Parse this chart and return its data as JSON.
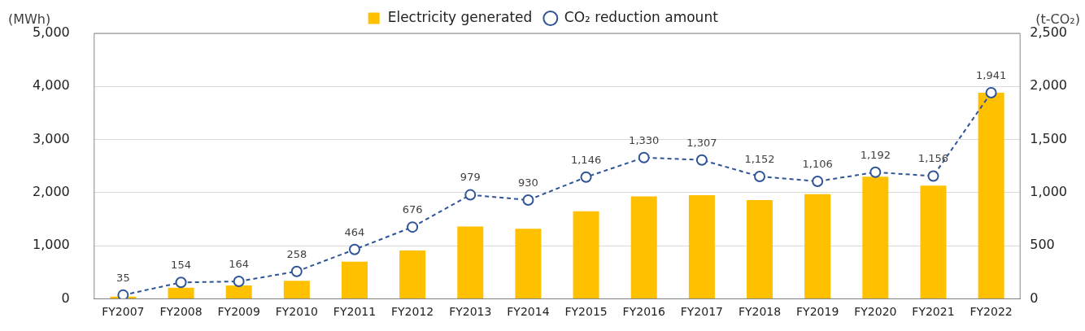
{
  "chart_data": {
    "type": "bar",
    "ylabel": "(MWh)",
    "y2label": "(t-CO₂)",
    "categories": [
      "FY2007",
      "FY2008",
      "FY2009",
      "FY2010",
      "FY2011",
      "FY2012",
      "FY2013",
      "FY2014",
      "FY2015",
      "FY2016",
      "FY2017",
      "FY2018",
      "FY2019",
      "FY2020",
      "FY2021",
      "FY2022"
    ],
    "series": [
      {
        "name": "Electricity generated",
        "color": "#ffc000",
        "values": [
          40,
          210,
          250,
          340,
          700,
          910,
          1360,
          1320,
          1650,
          1930,
          1950,
          1860,
          1970,
          2300,
          2130,
          3880
        ]
      },
      {
        "name": "CO₂ reduction amount",
        "type": "line",
        "axis": "y2",
        "color": "#2f5597",
        "marker": "circle",
        "line_style": "dashed",
        "values": [
          35,
          154,
          164,
          258,
          464,
          676,
          979,
          930,
          1146,
          1330,
          1307,
          1152,
          1106,
          1192,
          1156,
          1941
        ],
        "value_labels": [
          "35",
          "154",
          "164",
          "258",
          "464",
          "676",
          "979",
          "930",
          "1,146",
          "1,330",
          "1,307",
          "1,152",
          "1,106",
          "1,192",
          "1,156",
          "1,941"
        ]
      }
    ],
    "ylim": [
      0,
      5000
    ],
    "yticks": [
      {
        "value": 0,
        "label": "0"
      },
      {
        "value": 1000,
        "label": "1,000"
      },
      {
        "value": 2000,
        "label": "2,000"
      },
      {
        "value": 3000,
        "label": "3,000"
      },
      {
        "value": 4000,
        "label": "4,000"
      },
      {
        "value": 5000,
        "label": "5,000"
      }
    ],
    "y2lim": [
      0,
      2500
    ],
    "y2ticks": [
      {
        "value": 0,
        "label": "0"
      },
      {
        "value": 500,
        "label": "500"
      },
      {
        "value": 1000,
        "label": "1,000"
      },
      {
        "value": 1500,
        "label": "1,500"
      },
      {
        "value": 2000,
        "label": "2,000"
      },
      {
        "value": 2500,
        "label": "2,500"
      }
    ],
    "grid": "y",
    "legend": "top"
  }
}
